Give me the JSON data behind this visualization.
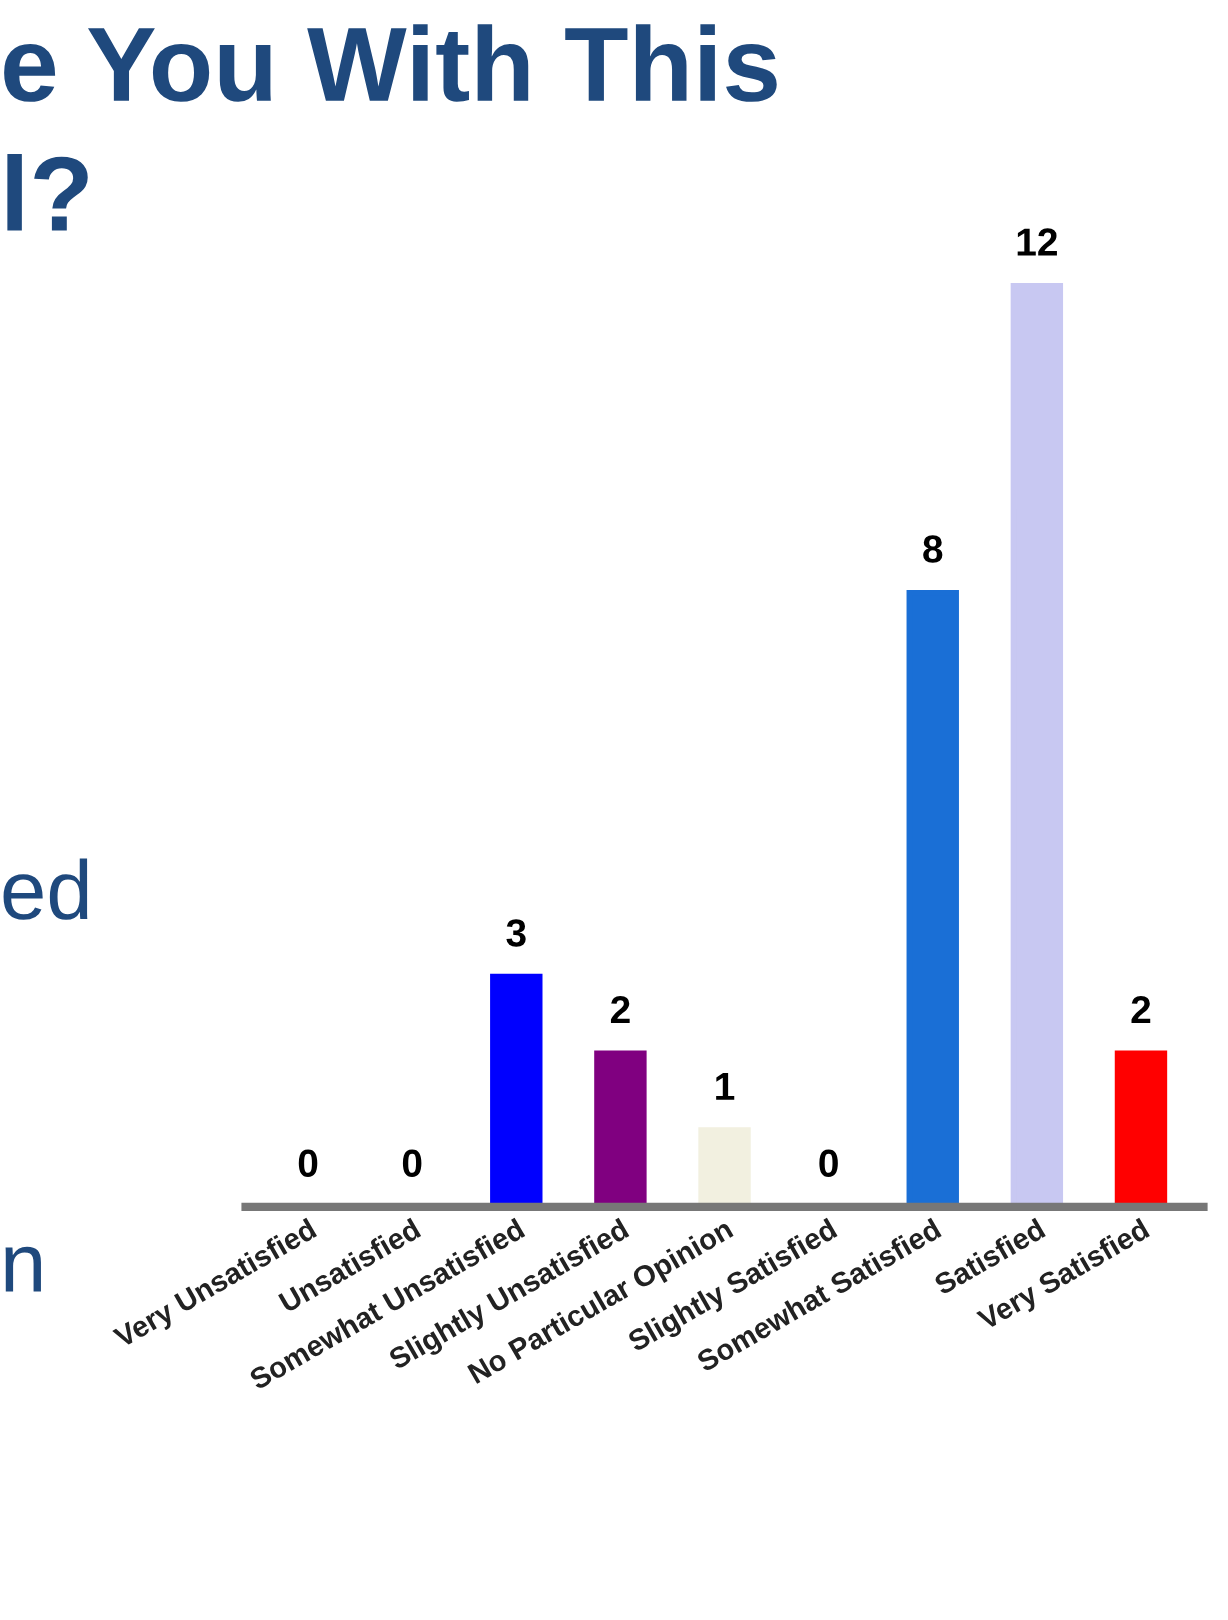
{
  "chart_data": {
    "type": "bar",
    "categories": [
      "Very Unsatisfied",
      "Unsatisfied",
      "Somewhat Unsatisfied",
      "Slightly Unsatisfied",
      "No Particular Opinion",
      "Slightly Satisfied",
      "Somewhat Satisfied",
      "Satisfied",
      "Very Satisfied"
    ],
    "values": [
      0,
      0,
      3,
      2,
      1,
      0,
      8,
      12,
      2
    ],
    "colors": [
      "#4f81bd",
      "#c0504d",
      "#0000ff",
      "#800080",
      "#f2f0e0",
      "#1f3864",
      "#1a6fd6",
      "#c8c8f2",
      "#ff0000"
    ],
    "data_labels": true,
    "annotations": [
      "e You With This",
      "l?",
      "ed",
      "n"
    ],
    "grid": false,
    "legend": false
  }
}
